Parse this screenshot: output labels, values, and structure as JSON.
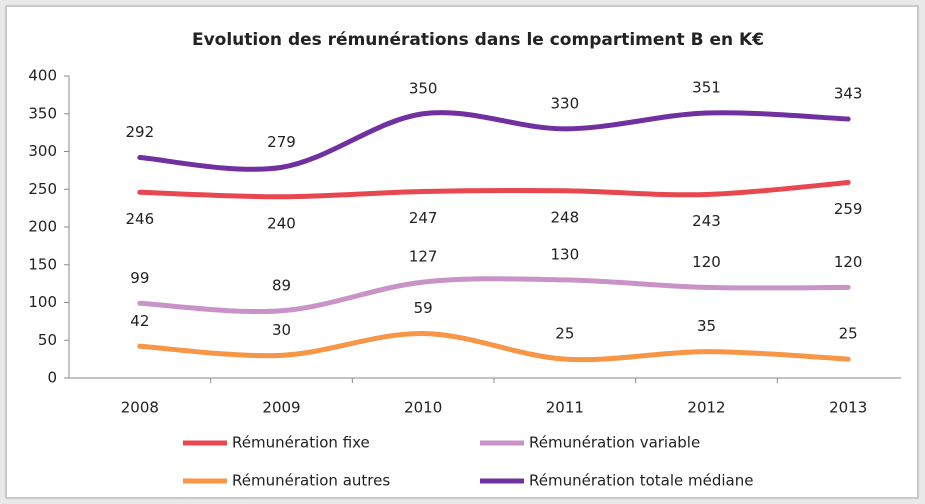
{
  "chart_data": {
    "type": "line",
    "title": "Evolution des rémunérations dans le compartiment B en K€",
    "categories": [
      "2008",
      "2009",
      "2010",
      "2011",
      "2012",
      "2013"
    ],
    "series": [
      {
        "name": "Rémunération fixe",
        "color": "#e8474f",
        "values": [
          246,
          240,
          247,
          248,
          243,
          259
        ],
        "label_side": "below"
      },
      {
        "name": "Rémunération variable",
        "color": "#c993c8",
        "values": [
          99,
          89,
          127,
          130,
          120,
          120
        ],
        "label_side": "above"
      },
      {
        "name": "Rémunération autres",
        "color": "#f79646",
        "values": [
          42,
          30,
          59,
          25,
          35,
          25
        ],
        "label_side": "above"
      },
      {
        "name": "Rémunération totale médiane",
        "color": "#7030a0",
        "values": [
          292,
          279,
          350,
          330,
          351,
          343
        ],
        "label_side": "above"
      }
    ],
    "ylim": [
      0,
      400
    ],
    "yticks": [
      0,
      50,
      100,
      150,
      200,
      250,
      300,
      350,
      400
    ],
    "grid": false,
    "smooth": true,
    "legend": "bottom"
  }
}
